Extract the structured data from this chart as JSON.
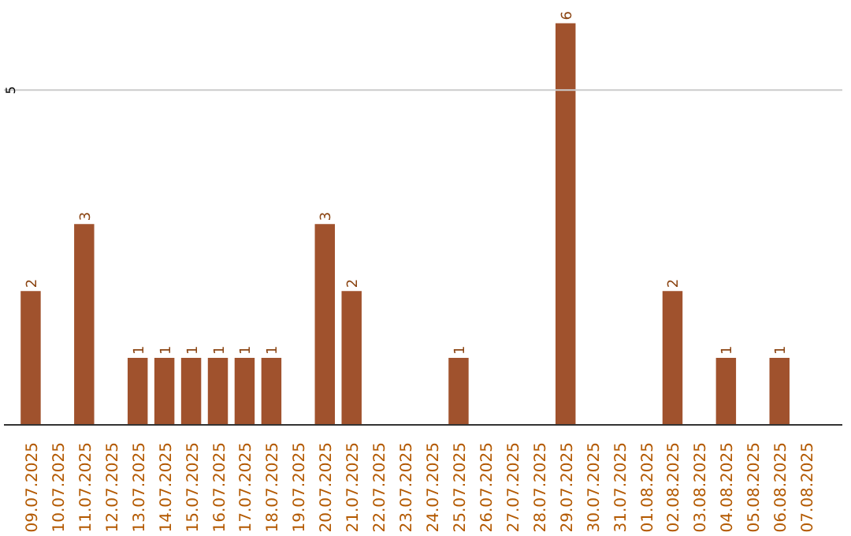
{
  "chart_data": {
    "type": "bar",
    "categories": [
      "09.07.2025",
      "10.07.2025",
      "11.07.2025",
      "12.07.2025",
      "13.07.2025",
      "14.07.2025",
      "15.07.2025",
      "16.07.2025",
      "17.07.2025",
      "18.07.2025",
      "19.07.2025",
      "20.07.2025",
      "21.07.2025",
      "22.07.2025",
      "23.07.2025",
      "24.07.2025",
      "25.07.2025",
      "26.07.2025",
      "27.07.2025",
      "28.07.2025",
      "29.07.2025",
      "30.07.2025",
      "31.07.2025",
      "01.08.2025",
      "02.08.2025",
      "03.08.2025",
      "04.08.2025",
      "05.08.2025",
      "06.08.2025",
      "07.08.2025"
    ],
    "values": [
      2,
      null,
      3,
      null,
      1,
      1,
      1,
      1,
      1,
      1,
      null,
      3,
      2,
      null,
      null,
      null,
      1,
      null,
      null,
      null,
      6,
      null,
      null,
      null,
      2,
      null,
      1,
      null,
      1,
      null
    ],
    "color": "#a0522d",
    "ref_lines": [
      {
        "axis": "y",
        "value": 5,
        "label": "5",
        "color": "#cccccc"
      }
    ],
    "data_labels": true
  }
}
